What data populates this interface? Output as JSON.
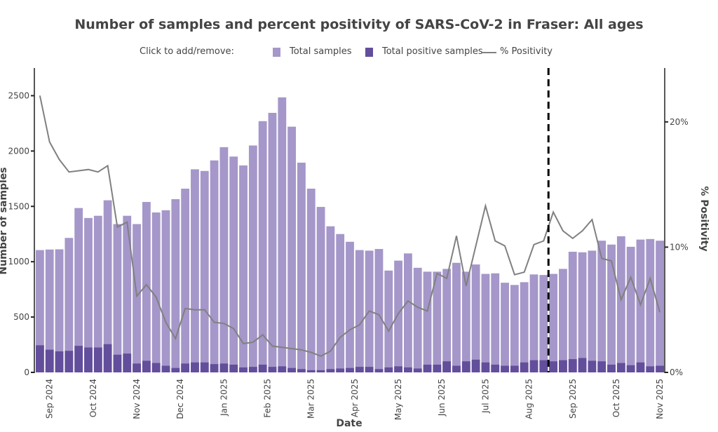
{
  "chart_data": {
    "type": "bar",
    "title": "Number of samples and percent positivity of SARS-CoV-2 in Fraser: All ages",
    "legend_prompt": "Click to add/remove:",
    "legend_position": "top-center",
    "xlabel": "Date",
    "ylabel": "Number of samples",
    "y2label": "% Positivity",
    "ylim": [
      0,
      2750
    ],
    "y2lim": [
      0,
      24.3
    ],
    "yticks": [
      "0",
      "500",
      "1000",
      "1500",
      "2000",
      "2500"
    ],
    "yticks_values": [
      0,
      500,
      1000,
      1500,
      2000,
      2500
    ],
    "y2ticks": [
      "0%",
      "10%",
      "20%"
    ],
    "y2ticks_values": [
      0,
      10,
      20
    ],
    "xtick_labels": [
      "Sep 2024",
      "Oct 2024",
      "Nov 2024",
      "Dec 2024",
      "Jan 2025",
      "Feb 2025",
      "Mar 2025",
      "Apr 2025",
      "May 2025",
      "Jun 2025",
      "Jul 2025",
      "Aug 2025",
      "Sep 2025",
      "Oct 2025",
      "Nov 2025"
    ],
    "xtick_bar_index": [
      1,
      5.5,
      10,
      14.5,
      19,
      23.5,
      28,
      32.5,
      37,
      41.5,
      46,
      50.5,
      55,
      59.5,
      64
    ],
    "vline_bar_index": 52.5,
    "vline_style": "dashed",
    "colors": {
      "total": "#a597c9",
      "positive": "#634e9c",
      "positivity": "#808080",
      "vline": "#000000"
    },
    "series": [
      {
        "name": "Total samples",
        "type": "bar",
        "values": [
          1105,
          1110,
          1112,
          1215,
          1485,
          1395,
          1415,
          1555,
          1340,
          1415,
          1340,
          1540,
          1445,
          1465,
          1565,
          1660,
          1835,
          1820,
          1915,
          2035,
          1950,
          1870,
          2050,
          2270,
          2345,
          2485,
          2220,
          1895,
          1660,
          1495,
          1320,
          1250,
          1180,
          1105,
          1100,
          1115,
          920,
          1010,
          1075,
          945,
          910,
          910,
          935,
          990,
          910,
          975,
          890,
          895,
          810,
          790,
          815,
          885,
          880,
          890,
          935,
          1090,
          1085,
          1100,
          1190,
          1155,
          1230,
          1135,
          1200,
          1205,
          1190
        ]
      },
      {
        "name": "Total positive samples",
        "type": "bar",
        "values": [
          245,
          205,
          190,
          195,
          240,
          225,
          225,
          255,
          160,
          170,
          80,
          105,
          85,
          60,
          40,
          80,
          90,
          90,
          75,
          80,
          70,
          45,
          50,
          70,
          50,
          55,
          40,
          30,
          20,
          20,
          30,
          35,
          40,
          50,
          50,
          30,
          45,
          55,
          45,
          35,
          70,
          70,
          100,
          60,
          100,
          115,
          90,
          70,
          60,
          60,
          90,
          110,
          110,
          100,
          110,
          120,
          130,
          105,
          100,
          70,
          85,
          65,
          90,
          55,
          60
        ]
      },
      {
        "name": "% Positivity",
        "type": "line",
        "values": [
          22.1,
          18.4,
          17.0,
          16.0,
          16.1,
          16.2,
          16.0,
          16.5,
          11.6,
          12.0,
          6.1,
          7.0,
          6.0,
          4.0,
          2.7,
          5.1,
          5.0,
          5.0,
          4.0,
          3.9,
          3.5,
          2.3,
          2.4,
          3.0,
          2.1,
          2.0,
          1.9,
          1.8,
          1.6,
          1.3,
          1.7,
          2.8,
          3.4,
          3.8,
          4.9,
          4.6,
          3.3,
          4.7,
          5.7,
          5.2,
          4.9,
          7.9,
          7.5,
          10.9,
          6.9,
          10.1,
          13.3,
          10.5,
          10.1,
          7.8,
          8.0,
          10.2,
          10.5,
          12.8,
          11.3,
          10.7,
          11.3,
          12.2,
          9.1,
          8.9,
          5.8,
          7.6,
          5.4,
          7.5,
          4.8
        ]
      }
    ]
  }
}
